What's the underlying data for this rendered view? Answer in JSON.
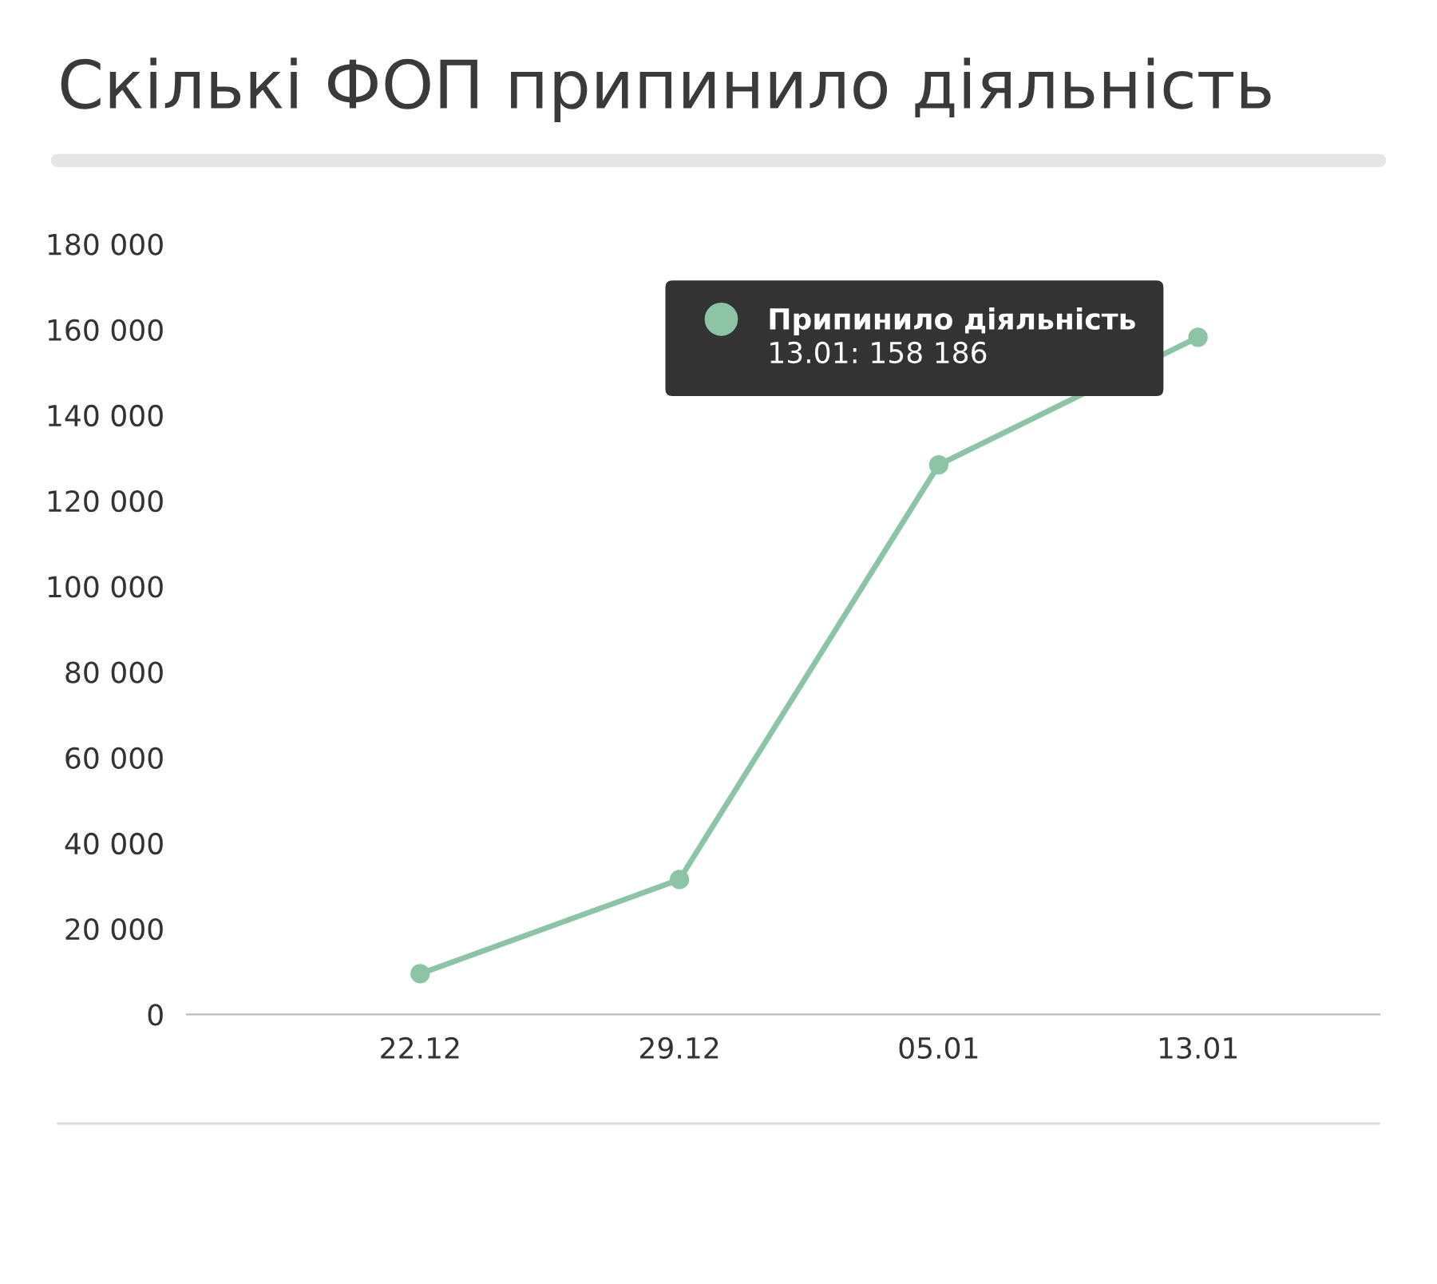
{
  "chart_data": {
    "type": "line",
    "title": "Скількі ФОП припинило діяльність",
    "categories": [
      "22.12",
      "29.12",
      "05.01",
      "13.01"
    ],
    "series": [
      {
        "name": "Припинило діяльність",
        "color": "#8cc5a5",
        "values": [
          9500,
          31500,
          128400,
          158186
        ]
      }
    ],
    "ylim": [
      0,
      180000
    ],
    "yticks": [
      {
        "value": 0,
        "label": "0"
      },
      {
        "value": 20000,
        "label": "20 000"
      },
      {
        "value": 40000,
        "label": "40 000"
      },
      {
        "value": 60000,
        "label": "60 000"
      },
      {
        "value": 80000,
        "label": "80 000"
      },
      {
        "value": 100000,
        "label": "100 000"
      },
      {
        "value": 120000,
        "label": "120 000"
      },
      {
        "value": 140000,
        "label": "140 000"
      },
      {
        "value": 160000,
        "label": "160 000"
      },
      {
        "value": 180000,
        "label": "180 000"
      }
    ],
    "annotations": [
      "13.01: 158 186"
    ],
    "marker": "circle",
    "line_style": "solid",
    "legend": "top right"
  }
}
